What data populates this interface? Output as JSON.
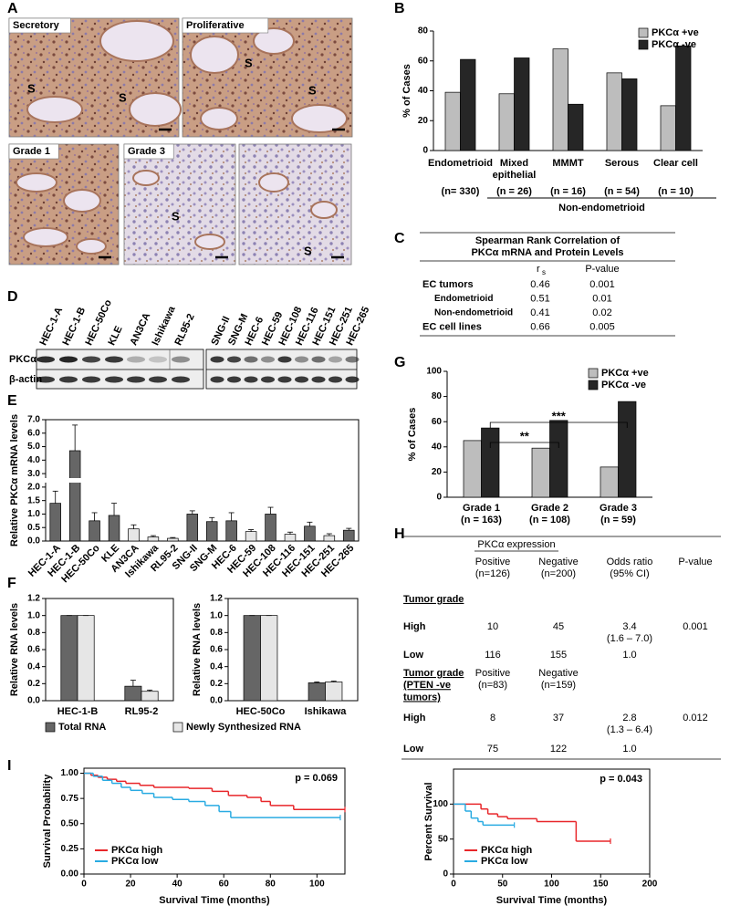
{
  "panel_labels": [
    "A",
    "B",
    "C",
    "D",
    "E",
    "F",
    "G",
    "H",
    "I"
  ],
  "histology": [
    {
      "label": "Secretory",
      "marks": [
        "S",
        "S"
      ]
    },
    {
      "label": "Proliferative",
      "marks": [
        "S",
        "S"
      ]
    },
    {
      "label": "Grade 1",
      "marks": []
    },
    {
      "label": "Grade 3",
      "marks": [
        "S"
      ]
    },
    {
      "marks": [
        "S"
      ]
    }
  ],
  "western": {
    "lane_groups": [
      [
        "HEC-1-A",
        "HEC-1-B",
        "HEC-50Co",
        "KLE",
        "AN3CA",
        "Ishikawa",
        "RL95-2"
      ],
      [
        "SNG-II",
        "SNG-M",
        "HEC-6",
        "HEC-59",
        "HEC-108",
        "HEC-116",
        "HEC-151",
        "HEC-251",
        "HEC-265"
      ]
    ],
    "rows": [
      "PKCα",
      "β-actin"
    ]
  },
  "table_c": {
    "title": "Spearman Rank Correlation of\nPKCα mRNA and Protein Levels",
    "col_r": "r",
    "col_r_sub": "s",
    "col_p": "P-value",
    "rows": [
      {
        "label": "EC tumors",
        "r": "0.46",
        "p": "0.001"
      },
      {
        "label": "Endometrioid",
        "r": "0.51",
        "p": "0.01",
        "sub": true
      },
      {
        "label": "Non-endometrioid",
        "r": "0.41",
        "p": "0.02",
        "sub": true
      },
      {
        "label": "EC cell lines",
        "r": "0.66",
        "p": "0.005"
      }
    ]
  },
  "table_h": {
    "header": "PKCα expression",
    "sections": [
      {
        "title": "Tumor grade",
        "columns": [
          "Positive\n(n=126)",
          "Negative\n(n=200)",
          "Odds ratio\n(95% CI)",
          "P-value"
        ],
        "rows": [
          [
            "High",
            "10",
            "45",
            "3.4\n(1.6 – 7.0)",
            "0.001"
          ],
          [
            "Low",
            "116",
            "155",
            "1.0"
          ]
        ]
      },
      {
        "title": "Tumor grade\n(PTEN -ve\ntumors)",
        "columns": [
          "Positive\n(n=83)",
          "Negative\n(n=159)"
        ],
        "rows": [
          [
            "High",
            "8",
            "37",
            "2.8\n(1.3 – 6.4)",
            "0.012"
          ],
          [
            "Low",
            "75",
            "122",
            "1.0"
          ]
        ]
      }
    ]
  },
  "chart_data": [
    {
      "type": "bar",
      "categories": [
        "Endometrioid",
        "Mixed\nepithelial",
        "MMMT",
        "Serous",
        "Clear cell"
      ],
      "category_notes": [
        "(n= 330)",
        "(n = 26)",
        "(n = 16)",
        "(n = 54)",
        "(n = 10)"
      ],
      "group_label": "Non-endometrioid",
      "ylabel": "% of Cases",
      "ylim": [
        0,
        80
      ],
      "yticks": [
        0,
        20,
        40,
        60,
        80
      ],
      "legend": "upper right",
      "series": [
        {
          "name": "PKCα +ve",
          "color": "#bdbdbd",
          "values": [
            39,
            38,
            68,
            52,
            30
          ]
        },
        {
          "name": "PKCα -ve",
          "color": "#262626",
          "values": [
            61,
            62,
            31,
            48,
            70
          ]
        }
      ]
    },
    {
      "type": "bar",
      "categories": [
        "HEC-1-A",
        "HEC-1-B",
        "HEC-50Co",
        "KLE",
        "AN3CA",
        "Ishikawa",
        "RL95-2",
        "SNG-II",
        "SNG-M",
        "HEC-6",
        "HEC-59",
        "HEC-108",
        "HEC-116",
        "HEC-151",
        "HEC-251",
        "HEC-265"
      ],
      "values": [
        1.4,
        4.7,
        0.75,
        0.95,
        0.45,
        0.15,
        0.1,
        1.0,
        0.72,
        0.75,
        0.35,
        1.0,
        0.25,
        0.55,
        0.2,
        0.4
      ],
      "errors": [
        0.45,
        1.9,
        0.3,
        0.45,
        0.15,
        0.05,
        0.03,
        0.12,
        0.15,
        0.3,
        0.07,
        0.25,
        0.08,
        0.15,
        0.07,
        0.07
      ],
      "colors": [
        "#666666",
        "#666666",
        "#666666",
        "#666666",
        "#e6e6e6",
        "#e6e6e6",
        "#e6e6e6",
        "#666666",
        "#666666",
        "#666666",
        "#e6e6e6",
        "#666666",
        "#e6e6e6",
        "#666666",
        "#e6e6e6",
        "#666666"
      ],
      "ylabel": "Relative PKCα mRNA levels",
      "ylim": [
        0,
        7
      ],
      "yticks": [
        {
          "value": 0,
          "label": "0.0"
        },
        {
          "value": 0.5,
          "label": "0.5"
        },
        {
          "value": 1,
          "label": "1.0"
        },
        {
          "value": 1.5,
          "label": "1.5"
        },
        {
          "value": 2,
          "label": "2.0"
        },
        {
          "value": 3,
          "label": "3.0"
        },
        {
          "value": 4,
          "label": "4.0"
        },
        {
          "value": 5,
          "label": "5.0"
        },
        {
          "value": 6,
          "label": "6.0"
        },
        {
          "value": 7,
          "label": "7.0"
        }
      ],
      "ybreak": [
        2,
        3
      ]
    },
    {
      "type": "bar",
      "categories": [
        "HEC-1-B",
        "RL95-2"
      ],
      "ylabel": "Relative RNA levels",
      "ylim": [
        0,
        1.2
      ],
      "yticks": [
        {
          "value": 0,
          "label": "0.0"
        },
        {
          "value": 0.2,
          "label": "0.2"
        },
        {
          "value": 0.4,
          "label": "0.4"
        },
        {
          "value": 0.6,
          "label": "0.6"
        },
        {
          "value": 0.8,
          "label": "0.8"
        },
        {
          "value": 1,
          "label": "1.0"
        },
        {
          "value": 1.2,
          "label": "1.2"
        }
      ],
      "legend": "below",
      "series": [
        {
          "name": "Total RNA",
          "color": "#666666",
          "values": [
            1.0,
            0.17
          ],
          "errors": [
            0,
            0.07
          ]
        },
        {
          "name": "Newly Synthesized RNA",
          "color": "#e6e6e6",
          "values": [
            1.0,
            0.11
          ],
          "errors": [
            0,
            0.015
          ]
        }
      ]
    },
    {
      "type": "bar",
      "categories": [
        "HEC-50Co",
        "Ishikawa"
      ],
      "ylabel": "Relative RNA levels",
      "ylim": [
        0,
        1.2
      ],
      "yticks": [
        {
          "value": 0,
          "label": "0.0"
        },
        {
          "value": 0.2,
          "label": "0.2"
        },
        {
          "value": 0.4,
          "label": "0.4"
        },
        {
          "value": 0.6,
          "label": "0.6"
        },
        {
          "value": 0.8,
          "label": "0.8"
        },
        {
          "value": 1,
          "label": "1.0"
        },
        {
          "value": 1.2,
          "label": "1.2"
        }
      ],
      "series": [
        {
          "color": "#666666",
          "values": [
            1.0,
            0.21
          ],
          "errors": [
            0,
            0.01
          ]
        },
        {
          "color": "#e6e6e6",
          "values": [
            1.0,
            0.22
          ],
          "errors": [
            0,
            0.01
          ]
        }
      ]
    },
    {
      "type": "bar",
      "categories": [
        "Grade 1\n(n = 163)",
        "Grade 2\n(n = 108)",
        "Grade 3\n(n = 59)"
      ],
      "ylabel": "% of Cases",
      "ylim": [
        0,
        100
      ],
      "yticks": [
        0,
        20,
        40,
        60,
        80,
        100
      ],
      "legend": "upper right",
      "significance": [
        {
          "text": "***",
          "from": 0,
          "to": 2
        },
        {
          "text": "**",
          "from": 0,
          "to": 1
        }
      ],
      "series": [
        {
          "name": "PKCα +ve",
          "color": "#bdbdbd",
          "values": [
            45,
            39,
            24
          ]
        },
        {
          "name": "PKCα -ve",
          "color": "#262626",
          "values": [
            55,
            61,
            76
          ]
        }
      ]
    },
    {
      "type": "step",
      "xlabel": "Survival Time (months)",
      "ylabel": "Survival Probability",
      "annotation": "p = 0.069",
      "xlim": [
        0,
        112
      ],
      "xticks": [
        0,
        20,
        40,
        60,
        80,
        100
      ],
      "ylim": [
        0,
        1.05
      ],
      "yticks": [
        {
          "value": 0,
          "label": "0.00"
        },
        {
          "value": 0.25,
          "label": "0.25"
        },
        {
          "value": 0.5,
          "label": "0.50"
        },
        {
          "value": 0.75,
          "label": "0.75"
        },
        {
          "value": 1,
          "label": "1.00"
        }
      ],
      "legend": "lower left",
      "series": [
        {
          "name": "PKCα high",
          "color": "#e8262a",
          "x": [
            0,
            3,
            6,
            10,
            14,
            18,
            24,
            30,
            45,
            55,
            62,
            70,
            76,
            80,
            90,
            112
          ],
          "values": [
            1.0,
            0.98,
            0.96,
            0.94,
            0.92,
            0.9,
            0.88,
            0.86,
            0.85,
            0.82,
            0.78,
            0.76,
            0.72,
            0.68,
            0.64,
            0.64
          ]
        },
        {
          "name": "PKCα low",
          "color": "#29abe2",
          "x": [
            0,
            4,
            8,
            12,
            16,
            20,
            25,
            30,
            38,
            45,
            52,
            58,
            63,
            110
          ],
          "values": [
            1.0,
            0.97,
            0.93,
            0.9,
            0.86,
            0.83,
            0.8,
            0.76,
            0.74,
            0.72,
            0.68,
            0.62,
            0.56,
            0.56
          ]
        }
      ]
    },
    {
      "type": "step",
      "xlabel": "Survival Time (months)",
      "ylabel": "Percent Survival",
      "annotation": "p = 0.043",
      "xlim": [
        0,
        200
      ],
      "xticks": [
        0,
        50,
        100,
        150,
        200
      ],
      "ylim": [
        0,
        150
      ],
      "yticks": [
        0,
        50,
        100
      ],
      "legend": "lower left",
      "series": [
        {
          "name": "PKCα high",
          "color": "#e8262a",
          "x": [
            0,
            28,
            35,
            45,
            55,
            85,
            125,
            160
          ],
          "values": [
            100,
            93,
            86,
            82,
            79,
            75,
            47,
            47
          ]
        },
        {
          "name": "PKCα low",
          "color": "#29abe2",
          "x": [
            0,
            12,
            18,
            25,
            30,
            62
          ],
          "values": [
            100,
            90,
            80,
            75,
            70,
            70
          ]
        }
      ]
    }
  ]
}
